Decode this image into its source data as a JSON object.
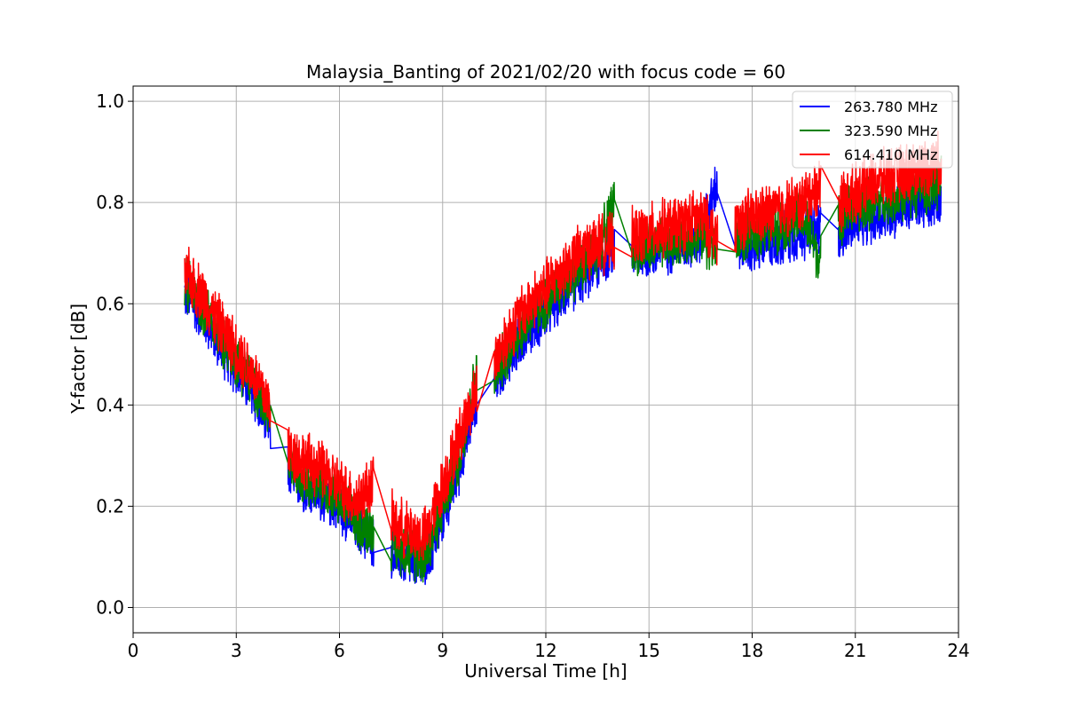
{
  "chart_data": {
    "type": "line",
    "title": "Malaysia_Banting of 2021/02/20 with focus code = 60",
    "xlabel": "Universal Time [h]",
    "ylabel": "Y-factor [dB]",
    "xlim": [
      0,
      24
    ],
    "ylim": [
      -0.05,
      1.03
    ],
    "xticks": [
      0,
      3,
      6,
      9,
      12,
      15,
      18,
      21,
      24
    ],
    "xtick_labels": [
      "0",
      "3",
      "6",
      "9",
      "12",
      "15",
      "18",
      "21",
      "24"
    ],
    "yticks": [
      0.0,
      0.2,
      0.4,
      0.6,
      0.8,
      1.0
    ],
    "ytick_labels": [
      "0.0",
      "0.2",
      "0.4",
      "0.6",
      "0.8",
      "1.0"
    ],
    "grid": true,
    "legend_position": "top-right",
    "observation_windows": [
      {
        "start": 1.5,
        "end": 4.0
      },
      {
        "start": 4.5,
        "end": 7.0
      },
      {
        "start": 7.5,
        "end": 10.0
      },
      {
        "start": 10.5,
        "end": 14.0
      },
      {
        "start": 14.5,
        "end": 17.0
      },
      {
        "start": 17.5,
        "end": 20.0
      },
      {
        "start": 20.5,
        "end": 23.5
      }
    ],
    "series": [
      {
        "name": "263.780 MHz",
        "color": "#0000ff",
        "x": [
          1.5,
          2.0,
          2.5,
          3.0,
          3.5,
          4.0,
          4.5,
          5.0,
          5.5,
          6.0,
          6.5,
          7.0,
          7.5,
          8.0,
          8.5,
          9.0,
          9.5,
          10.0,
          10.5,
          11.0,
          11.5,
          12.0,
          12.5,
          13.0,
          13.5,
          14.0,
          14.5,
          15.0,
          15.5,
          16.0,
          16.5,
          17.0,
          17.5,
          18.0,
          18.5,
          19.0,
          19.5,
          20.0,
          20.5,
          21.0,
          21.5,
          22.0,
          22.5,
          23.0,
          23.5
        ],
        "y": [
          0.62,
          0.58,
          0.52,
          0.47,
          0.42,
          0.35,
          0.27,
          0.24,
          0.22,
          0.2,
          0.16,
          0.13,
          0.11,
          0.09,
          0.08,
          0.18,
          0.28,
          0.42,
          0.45,
          0.5,
          0.55,
          0.58,
          0.62,
          0.65,
          0.68,
          0.71,
          0.7,
          0.7,
          0.71,
          0.72,
          0.73,
          0.84,
          0.72,
          0.71,
          0.72,
          0.73,
          0.74,
          0.75,
          0.74,
          0.76,
          0.77,
          0.78,
          0.79,
          0.8,
          0.81
        ],
        "noise": 0.05
      },
      {
        "name": "323.590 MHz",
        "color": "#008000",
        "x": [
          1.5,
          2.0,
          2.5,
          3.0,
          3.5,
          4.0,
          4.5,
          5.0,
          5.5,
          6.0,
          6.5,
          7.0,
          7.5,
          8.0,
          8.5,
          9.0,
          9.5,
          10.0,
          10.5,
          11.0,
          11.5,
          12.0,
          12.5,
          13.0,
          13.5,
          14.0,
          14.5,
          15.0,
          15.5,
          16.0,
          16.5,
          17.0,
          17.5,
          18.0,
          18.5,
          19.0,
          19.5,
          20.0,
          20.5,
          21.0,
          21.5,
          22.0,
          22.5,
          23.0,
          23.5
        ],
        "y": [
          0.64,
          0.6,
          0.54,
          0.49,
          0.44,
          0.37,
          0.29,
          0.26,
          0.24,
          0.21,
          0.17,
          0.15,
          0.13,
          0.11,
          0.1,
          0.2,
          0.3,
          0.47,
          0.46,
          0.52,
          0.57,
          0.6,
          0.64,
          0.67,
          0.7,
          0.8,
          0.71,
          0.71,
          0.72,
          0.73,
          0.74,
          0.7,
          0.73,
          0.74,
          0.75,
          0.76,
          0.77,
          0.68,
          0.77,
          0.79,
          0.8,
          0.81,
          0.82,
          0.83,
          0.84
        ],
        "noise": 0.05
      },
      {
        "name": "614.410 MHz",
        "color": "#ff0000",
        "x": [
          1.5,
          2.0,
          2.5,
          3.0,
          3.5,
          4.0,
          4.5,
          5.0,
          5.5,
          6.0,
          6.5,
          7.0,
          7.5,
          8.0,
          8.5,
          9.0,
          9.5,
          10.0,
          10.5,
          11.0,
          11.5,
          12.0,
          12.5,
          13.0,
          13.5,
          14.0,
          14.5,
          15.0,
          15.5,
          16.0,
          16.5,
          17.0,
          17.5,
          18.0,
          18.5,
          19.0,
          19.5,
          20.0,
          20.5,
          21.0,
          21.5,
          22.0,
          22.5,
          23.0,
          23.5
        ],
        "y": [
          0.66,
          0.62,
          0.56,
          0.51,
          0.46,
          0.4,
          0.31,
          0.29,
          0.27,
          0.24,
          0.21,
          0.25,
          0.17,
          0.15,
          0.14,
          0.24,
          0.34,
          0.43,
          0.49,
          0.55,
          0.6,
          0.63,
          0.67,
          0.7,
          0.72,
          0.72,
          0.73,
          0.74,
          0.75,
          0.76,
          0.77,
          0.73,
          0.76,
          0.77,
          0.78,
          0.79,
          0.8,
          0.84,
          0.8,
          0.82,
          0.84,
          0.85,
          0.86,
          0.87,
          0.88
        ],
        "noise": 0.055
      }
    ]
  }
}
